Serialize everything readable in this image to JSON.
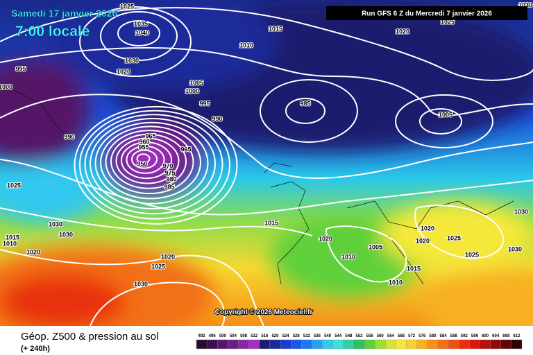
{
  "header": {
    "date": "Samedi 17 janvier 2026",
    "time": "7:00 locale",
    "run": "Run GFS 6 Z du Mercredi 7 janvier 2026"
  },
  "copyright": "Copyright © 2026 Meteociel.fr",
  "footer": {
    "title": "Géop. Z500 & pression au sol",
    "lead": "(+ 240h)"
  },
  "legend": {
    "labels": [
      "492",
      "496",
      "500",
      "504",
      "508",
      "512",
      "516",
      "520",
      "524",
      "528",
      "532",
      "536",
      "540",
      "544",
      "548",
      "552",
      "556",
      "560",
      "564",
      "568",
      "572",
      "576",
      "580",
      "584",
      "588",
      "592",
      "596",
      "600",
      "604",
      "608",
      "612"
    ],
    "colors": [
      "#2a0c33",
      "#3c0f4f",
      "#551668",
      "#6e1c86",
      "#8a25a6",
      "#a330c0",
      "#1c1c6e",
      "#1a2a9a",
      "#1b3cc8",
      "#1a55e6",
      "#1e78f0",
      "#2aa0f2",
      "#33c8f0",
      "#3ee0d8",
      "#33d1a0",
      "#2bc060",
      "#5ed03a",
      "#a0dc3a",
      "#d8e03a",
      "#f5e83a",
      "#fad22a",
      "#f8b020",
      "#f59018",
      "#f27014",
      "#ee5010",
      "#e8300e",
      "#d8180c",
      "#b8100c",
      "#90080a",
      "#600608",
      "#300404"
    ]
  },
  "isobar_labels": [
    "1025",
    "1035",
    "1040",
    "1030",
    "1020",
    "995",
    "1000",
    "1015",
    "1010",
    "1020",
    "1025",
    "1030",
    "1005",
    "1000",
    "995",
    "990",
    "985",
    "1005",
    "990",
    "965",
    "960",
    "955",
    "965",
    "950",
    "970",
    "975",
    "980",
    "985",
    "1025",
    "1030",
    "1030",
    "1015",
    "1010",
    "1020",
    "1015",
    "1020",
    "1005",
    "1010",
    "1020",
    "1020",
    "1025",
    "1030",
    "1030",
    "1025",
    "1020",
    "1025",
    "1030",
    "1015",
    "1010"
  ]
}
